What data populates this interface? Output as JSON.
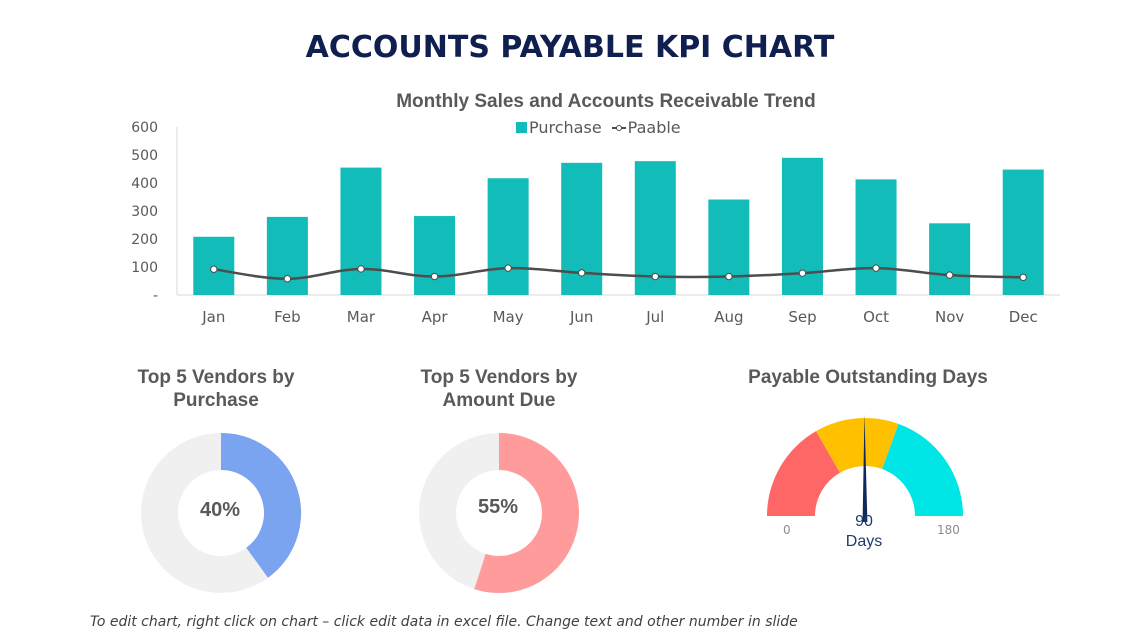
{
  "title": "ACCOUNTS PAYABLE KPI CHART",
  "footnote": "To edit chart, right click on chart – click edit data in excel file. Change text and other number in slide",
  "colors": {
    "title": "#0f1f4f",
    "bar": "#12bcb8",
    "line": "#4d4d4d",
    "donut_track": "#f0f0f0",
    "donut1": "#7aa3f0",
    "donut2": "#ff9b9b",
    "gauge_red": "#ff6666",
    "gauge_yellow": "#ffc000",
    "gauge_cyan": "#00e6e6",
    "needle": "#0f2a5a"
  },
  "chart_data": [
    {
      "type": "bar",
      "title": "Monthly Sales and Accounts Receivable Trend",
      "categories": [
        "Jan",
        "Feb",
        "Mar",
        "Apr",
        "May",
        "Jun",
        "Jul",
        "Aug",
        "Sep",
        "Oct",
        "Nov",
        "Dec"
      ],
      "series": [
        {
          "name": "Purchase",
          "type": "bar",
          "values": [
            208,
            279,
            455,
            282,
            417,
            472,
            478,
            341,
            490,
            413,
            256,
            448
          ]
        },
        {
          "name": "Paable",
          "type": "line",
          "values": [
            92,
            58,
            93,
            66,
            96,
            79,
            66,
            66,
            78,
            96,
            71,
            63
          ]
        }
      ],
      "ylim": [
        0,
        600
      ],
      "yticks": [
        0,
        100,
        200,
        300,
        400,
        500,
        600
      ],
      "ytick_labels": [
        "-",
        "100",
        "200",
        "300",
        "400",
        "500",
        "600"
      ],
      "legend_position": "top",
      "grid": false
    },
    {
      "type": "pie",
      "title_lines": [
        "Top 5 Vendors by",
        "Purchase"
      ],
      "value": 40,
      "center_label": "40%"
    },
    {
      "type": "pie",
      "title_lines": [
        "Top 5 Vendors by",
        "Amount Due"
      ],
      "value": 55,
      "center_label": "55%"
    },
    {
      "type": "gauge",
      "title": "Payable Outstanding Days",
      "min": 0,
      "max": 180,
      "min_label": "0",
      "max_label": "180",
      "value": 90,
      "value_label": "90",
      "unit_label": "Days",
      "bands": [
        {
          "from": 0,
          "to": 60,
          "color": "#ff6666"
        },
        {
          "from": 60,
          "to": 110,
          "color": "#ffc000"
        },
        {
          "from": 110,
          "to": 180,
          "color": "#00e6e6"
        }
      ]
    }
  ]
}
